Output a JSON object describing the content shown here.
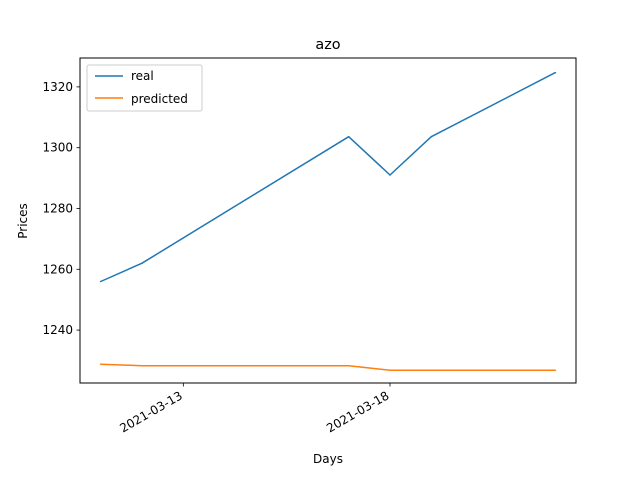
{
  "chart_data": {
    "type": "line",
    "title": "azo",
    "xlabel": "Days",
    "ylabel": "Prices",
    "x": [
      "2021-03-11",
      "2021-03-12",
      "2021-03-13",
      "2021-03-14",
      "2021-03-15",
      "2021-03-16",
      "2021-03-17",
      "2021-03-18",
      "2021-03-19",
      "2021-03-20",
      "2021-03-21",
      "2021-03-22"
    ],
    "x_ticks": [
      "2021-03-13",
      "2021-03-18"
    ],
    "y_ticks": [
      1240,
      1260,
      1280,
      1300,
      1320
    ],
    "xlim": [
      "2021-03-10 12:00",
      "2021-03-22 12:00"
    ],
    "ylim": [
      1222.6,
      1329.5
    ],
    "legend_position": "upper left",
    "grid": false,
    "series": [
      {
        "name": "real",
        "color": "#1f77b4",
        "points": [
          [
            "2021-03-11",
            1256.0
          ],
          [
            "2021-03-12",
            1262.0
          ],
          [
            "2021-03-17",
            1303.6
          ],
          [
            "2021-03-18",
            1291.0
          ],
          [
            "2021-03-19",
            1303.6
          ],
          [
            "2021-03-22",
            1324.7
          ]
        ]
      },
      {
        "name": "predicted",
        "color": "#ff7f0e",
        "points": [
          [
            "2021-03-11",
            1228.8
          ],
          [
            "2021-03-12",
            1228.3
          ],
          [
            "2021-03-17",
            1228.3
          ],
          [
            "2021-03-18",
            1226.8
          ],
          [
            "2021-03-19",
            1226.8
          ],
          [
            "2021-03-22",
            1226.8
          ]
        ]
      }
    ]
  }
}
